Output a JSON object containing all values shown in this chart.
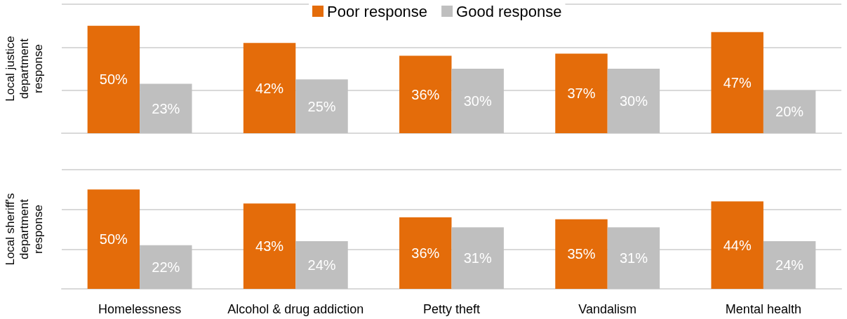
{
  "chart_data": [
    {
      "type": "bar",
      "ylabel": "Local justice department response",
      "categories": [
        null,
        null,
        null,
        null,
        null
      ],
      "series": [
        {
          "name": "Poor response",
          "color": "#e46c0a",
          "values": [
            50,
            42,
            36,
            37,
            47
          ],
          "value_labels": [
            "50%",
            "42%",
            "36%",
            "37%",
            "47%"
          ]
        },
        {
          "name": "Good response",
          "color": "#bfbfbf",
          "values": [
            23,
            25,
            30,
            30,
            20
          ],
          "value_labels": [
            "23%",
            "25%",
            "30%",
            "30%",
            "20%"
          ]
        }
      ],
      "ylim": [
        0,
        60
      ],
      "yticks": [
        0,
        20,
        40,
        60
      ],
      "grid": "y",
      "legend": "top",
      "tick_labels": false
    },
    {
      "type": "bar",
      "ylabel": "Local sheriff's department response",
      "categories": [
        "Homelessness",
        "Alcohol & drug addiction",
        "Petty theft",
        "Vandalism",
        "Mental health"
      ],
      "series": [
        {
          "color": "#e46c0a",
          "values": [
            50,
            43,
            36,
            35,
            44
          ],
          "value_labels": [
            "50%",
            "43%",
            "36%",
            "35%",
            "44%"
          ]
        },
        {
          "color": "#bfbfbf",
          "values": [
            22,
            24,
            31,
            31,
            24
          ],
          "value_labels": [
            "22%",
            "24%",
            "31%",
            "31%",
            "24%"
          ]
        }
      ],
      "ylim": [
        0,
        60
      ],
      "yticks": [
        0,
        20,
        40,
        60
      ],
      "grid": "y",
      "tick_labels": "x"
    }
  ]
}
